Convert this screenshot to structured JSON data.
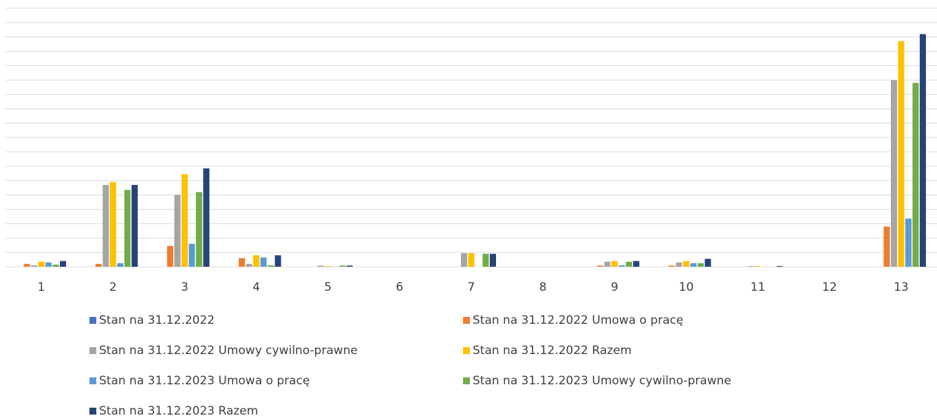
{
  "chart_data": {
    "type": "bar",
    "categories": [
      "1",
      "2",
      "3",
      "4",
      "5",
      "6",
      "7",
      "8",
      "9",
      "10",
      "11",
      "12",
      "13"
    ],
    "series": [
      {
        "name": "Stan na 31.12.2022",
        "color": "#4472c4",
        "values": [
          0,
          0,
          0,
          0,
          0,
          0,
          0,
          0,
          0,
          0,
          0,
          0,
          0
        ]
      },
      {
        "name": "Stan na 31.12.2022 Umowa o pracę",
        "color": "#ed7d31",
        "values": [
          0.2,
          0.2,
          1.45,
          0.6,
          0,
          0,
          0,
          0,
          0.08,
          0.08,
          0,
          0,
          2.8
        ]
      },
      {
        "name": "Stan na 31.12.2022 Umowy cywilno-prawne",
        "color": "#a5a5a5",
        "values": [
          0.1,
          5.7,
          5.0,
          0.2,
          0.08,
          0,
          0.95,
          0,
          0.35,
          0.3,
          0.05,
          0,
          13.0
        ]
      },
      {
        "name": "Stan na 31.12.2022 Razem",
        "color": "#ffc000",
        "values": [
          0.35,
          5.9,
          6.45,
          0.8,
          0.05,
          0,
          0.95,
          0,
          0.4,
          0.4,
          0.05,
          0,
          15.7
        ]
      },
      {
        "name": "Stan na 31.12.2023 Umowa o pracę",
        "color": "#5b9bd5",
        "values": [
          0.3,
          0.25,
          1.6,
          0.65,
          0,
          0,
          0,
          0,
          0.1,
          0.25,
          0,
          0,
          3.35
        ]
      },
      {
        "name": "Stan na 31.12.2023 Umowy cywilno-prawne",
        "color": "#70ad47",
        "values": [
          0.15,
          5.35,
          5.2,
          0.1,
          0.08,
          0,
          0.9,
          0,
          0.35,
          0.25,
          0,
          0,
          12.8
        ]
      },
      {
        "name": "Stan na 31.12.2023 Razem",
        "color": "#264478",
        "values": [
          0.4,
          5.7,
          6.85,
          0.8,
          0.08,
          0,
          0.9,
          0,
          0.4,
          0.55,
          0.05,
          0,
          16.2
        ]
      }
    ],
    "ylim": [
      0,
      18
    ],
    "yticks": [
      0,
      1,
      2,
      3,
      4,
      5,
      6,
      7,
      8,
      9,
      10,
      11,
      12,
      13,
      14,
      15,
      16,
      17,
      18
    ],
    "grid": true
  }
}
